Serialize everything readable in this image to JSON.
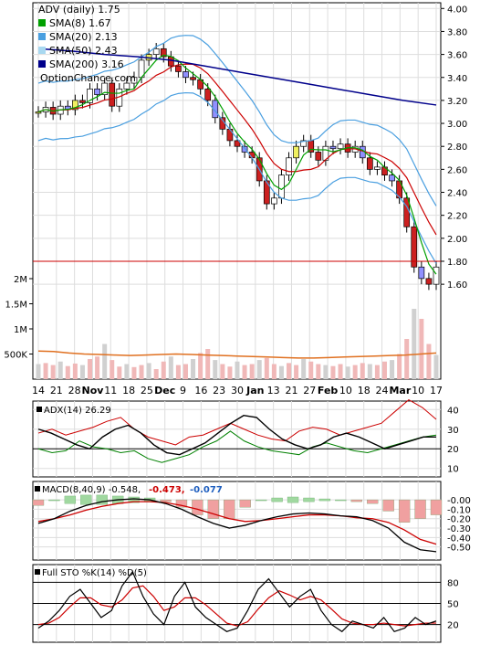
{
  "chart_data": {
    "type": "candlestick",
    "x_ticks": [
      "14",
      "21",
      "28",
      "Nov",
      "11",
      "18",
      "25",
      "Dec",
      "9",
      "16",
      "23",
      "30",
      "Jan",
      "13",
      "21",
      "27",
      "Feb",
      "10",
      "18",
      "24",
      "Mar",
      "10",
      "17"
    ],
    "x_tick_bold": [
      "Nov",
      "Dec",
      "Jan",
      "Feb",
      "Mar"
    ],
    "price_panel": {
      "legend": [
        {
          "label": "ADV (daily) 1.75",
          "color": "#000000"
        },
        {
          "label": "SMA(8) 1.67",
          "color": "#00a000"
        },
        {
          "label": "SMA(20) 2.13",
          "color": "#4a9fe0"
        },
        {
          "label": "SMA(50) 2.43",
          "color": "#a8d8f0"
        },
        {
          "label": "SMA(200) 3.16",
          "color": "#00008b"
        }
      ],
      "watermark": "OptionChance.com",
      "ylim": [
        1.45,
        4.05
      ],
      "yticks": [
        "4.00",
        "3.80",
        "3.60",
        "3.40",
        "3.20",
        "3.00",
        "2.80",
        "2.60",
        "2.40",
        "2.20",
        "2.00",
        "1.80",
        "1.60"
      ],
      "close_path": [
        3.1,
        3.14,
        3.08,
        3.15,
        3.12,
        3.2,
        3.18,
        3.3,
        3.25,
        3.35,
        3.15,
        3.3,
        3.35,
        3.4,
        3.55,
        3.6,
        3.65,
        3.58,
        3.5,
        3.45,
        3.4,
        3.38,
        3.3,
        3.2,
        3.05,
        2.95,
        2.85,
        2.8,
        2.75,
        2.7,
        2.5,
        2.3,
        2.35,
        2.55,
        2.7,
        2.8,
        2.85,
        2.75,
        2.68,
        2.8,
        2.78,
        2.82,
        2.75,
        2.8,
        2.7,
        2.6,
        2.62,
        2.55,
        2.5,
        2.35,
        2.1,
        1.75,
        1.65,
        1.6,
        1.75
      ],
      "sma200": [
        3.65,
        3.63,
        3.6,
        3.58,
        3.55,
        3.5,
        3.45,
        3.4,
        3.35,
        3.3,
        3.25,
        3.2,
        3.16
      ],
      "sma50": [
        3.2,
        3.22,
        3.25,
        3.28,
        3.25,
        3.2,
        3.15,
        3.05,
        2.95,
        2.85,
        2.78,
        2.7,
        2.6,
        2.5,
        2.43
      ],
      "res_line": 1.8
    },
    "volume_panel": {
      "yticks": [
        "2M",
        "1.5M",
        "1M",
        "500K"
      ],
      "bars_k": [
        300,
        320,
        280,
        350,
        260,
        310,
        280,
        400,
        450,
        700,
        380,
        250,
        300,
        240,
        280,
        320,
        200,
        350,
        450,
        280,
        300,
        400,
        520,
        600,
        380,
        300,
        250,
        350,
        280,
        300,
        380,
        420,
        300,
        260,
        320,
        280,
        400,
        350,
        300,
        280,
        260,
        300,
        250,
        280,
        320,
        300,
        280,
        350,
        380,
        500,
        800,
        1400,
        1200,
        700,
        480
      ],
      "avg_line_k": [
        560,
        550,
        520,
        500,
        490,
        480,
        470,
        480,
        490,
        500,
        490,
        480,
        470,
        460,
        450,
        440,
        430,
        420,
        420,
        430,
        440,
        450,
        460,
        470,
        480,
        500,
        520
      ]
    },
    "adx_panel": {
      "label": "ADX(14) 26.29",
      "yticks": [
        "40",
        "30",
        "20",
        "10"
      ],
      "adx": [
        30,
        28,
        25,
        22,
        20,
        26,
        30,
        32,
        28,
        22,
        18,
        17,
        20,
        23,
        28,
        33,
        37,
        36,
        30,
        25,
        22,
        20,
        22,
        26,
        28,
        26,
        23,
        20,
        22,
        24,
        26,
        26
      ],
      "di_plus": [
        20,
        18,
        19,
        24,
        21,
        20,
        18,
        19,
        15,
        13,
        15,
        17,
        21,
        24,
        29,
        24,
        21,
        19,
        18,
        17,
        21,
        23,
        21,
        19,
        18,
        20,
        22,
        24,
        26,
        27
      ],
      "di_minus": [
        28,
        30,
        27,
        29,
        31,
        34,
        36,
        30,
        26,
        24,
        22,
        26,
        27,
        30,
        33,
        30,
        27,
        25,
        24,
        29,
        31,
        30,
        27,
        29,
        31,
        33,
        39,
        45,
        41,
        35
      ]
    },
    "macd_panel": {
      "label": "MACD(8,40,9) -0.548,",
      "signal_label": "-0.473,",
      "hist_label": "-0.077",
      "yticks": [
        "-0.00",
        "-0.10",
        "-0.20",
        "-0.30",
        "-0.40",
        "-0.50"
      ],
      "macd": [
        -0.25,
        -0.2,
        -0.12,
        -0.06,
        -0.02,
        0.0,
        0.01,
        0.0,
        -0.04,
        -0.1,
        -0.18,
        -0.25,
        -0.3,
        -0.27,
        -0.22,
        -0.18,
        -0.15,
        -0.14,
        -0.15,
        -0.17,
        -0.18,
        -0.22,
        -0.3,
        -0.45,
        -0.53,
        -0.55
      ],
      "signal": [
        -0.23,
        -0.2,
        -0.16,
        -0.11,
        -0.07,
        -0.04,
        -0.02,
        -0.02,
        -0.03,
        -0.06,
        -0.1,
        -0.15,
        -0.2,
        -0.23,
        -0.22,
        -0.2,
        -0.18,
        -0.16,
        -0.16,
        -0.17,
        -0.19,
        -0.2,
        -0.24,
        -0.32,
        -0.42,
        -0.47
      ],
      "hist": [
        -0.03,
        0.0,
        0.04,
        0.05,
        0.05,
        0.04,
        0.03,
        0.02,
        -0.01,
        -0.04,
        -0.08,
        -0.1,
        -0.1,
        -0.04,
        0.0,
        0.02,
        0.03,
        0.02,
        0.01,
        0.0,
        -0.01,
        -0.02,
        -0.06,
        -0.12,
        -0.1,
        -0.08
      ]
    },
    "sto_panel": {
      "label": "Full STO %K(14) %D(5)",
      "yticks": [
        "80",
        "50",
        "20"
      ],
      "k": [
        15,
        25,
        40,
        60,
        70,
        50,
        30,
        40,
        75,
        95,
        60,
        35,
        20,
        60,
        80,
        45,
        30,
        20,
        10,
        15,
        40,
        70,
        85,
        65,
        45,
        60,
        70,
        40,
        20,
        10,
        25,
        20,
        15,
        30,
        10,
        15,
        30,
        20,
        25
      ],
      "d": [
        20,
        22,
        30,
        45,
        58,
        58,
        48,
        45,
        55,
        72,
        75,
        60,
        40,
        45,
        58,
        58,
        48,
        35,
        22,
        18,
        24,
        42,
        58,
        68,
        62,
        55,
        60,
        55,
        42,
        28,
        22,
        20,
        20,
        22,
        20,
        18,
        20,
        22,
        22
      ]
    }
  }
}
